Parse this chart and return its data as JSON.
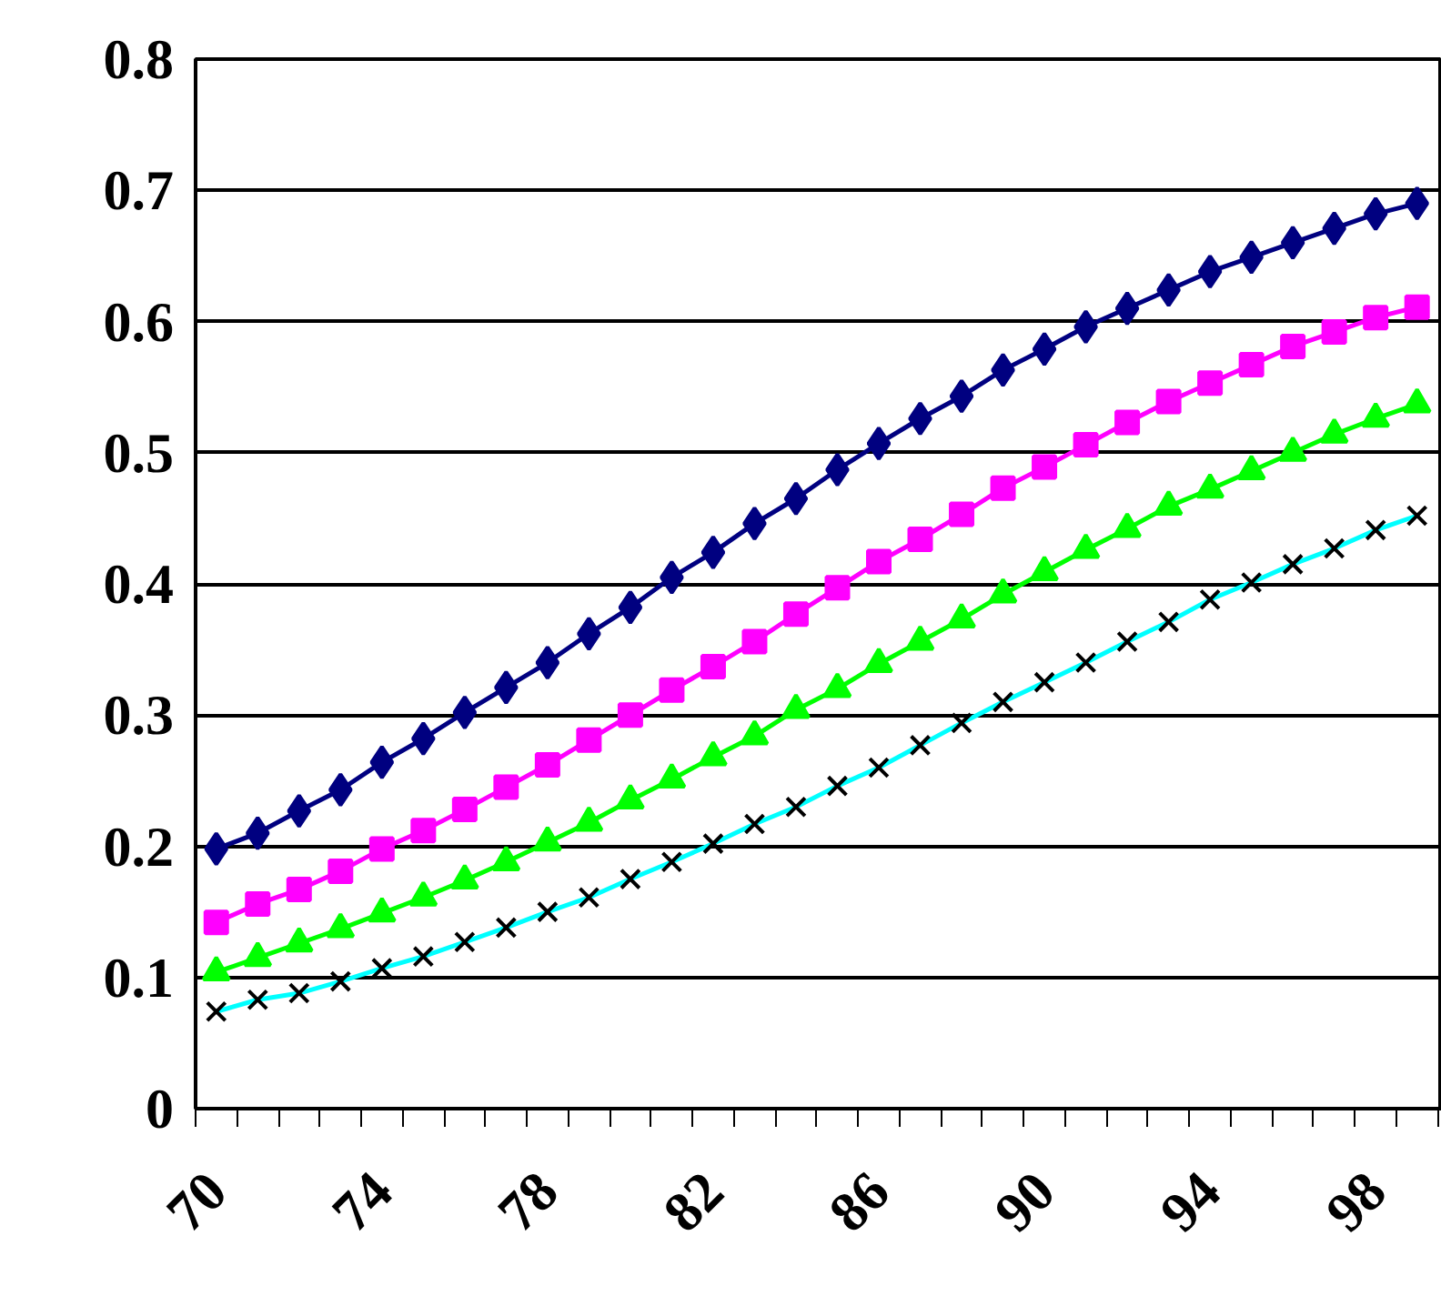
{
  "chart_data": {
    "type": "line",
    "categories": [
      "70",
      null,
      null,
      null,
      "74",
      null,
      null,
      null,
      "78",
      null,
      null,
      null,
      "82",
      null,
      null,
      null,
      "86",
      null,
      null,
      null,
      "90",
      null,
      null,
      null,
      "94",
      null,
      null,
      null,
      "98",
      null
    ],
    "series": [
      {
        "color": "#000080",
        "marker": "diamond",
        "values": [
          0.198,
          0.21,
          0.227,
          0.243,
          0.264,
          0.282,
          0.302,
          0.321,
          0.34,
          0.362,
          0.382,
          0.405,
          0.424,
          0.446,
          0.465,
          0.487,
          0.507,
          0.526,
          0.543,
          0.563,
          0.579,
          0.596,
          0.61,
          0.624,
          0.638,
          0.649,
          0.66,
          0.671,
          0.682,
          0.69
        ]
      },
      {
        "color": "#ff00ff",
        "marker": "square",
        "values": [
          0.142,
          0.156,
          0.167,
          0.181,
          0.198,
          0.212,
          0.228,
          0.245,
          0.262,
          0.281,
          0.3,
          0.319,
          0.337,
          0.356,
          0.377,
          0.397,
          0.417,
          0.434,
          0.453,
          0.473,
          0.489,
          0.506,
          0.523,
          0.539,
          0.553,
          0.567,
          0.581,
          0.592,
          0.603,
          0.611
        ]
      },
      {
        "color": "#00ff00",
        "marker": "triangle",
        "values": [
          0.104,
          0.115,
          0.126,
          0.137,
          0.149,
          0.161,
          0.174,
          0.188,
          0.203,
          0.218,
          0.235,
          0.251,
          0.268,
          0.284,
          0.304,
          0.32,
          0.339,
          0.356,
          0.373,
          0.392,
          0.409,
          0.426,
          0.442,
          0.459,
          0.472,
          0.486,
          0.5,
          0.514,
          0.526,
          0.537
        ]
      },
      {
        "color": "#00ffff",
        "marker": "cross",
        "colors": [
          "#000000",
          "#000000",
          "#000000",
          "#000000",
          "#000000",
          "#000000",
          "#000000",
          "#000000",
          "#000000",
          "#000000",
          "#000000",
          "#000000",
          "#000000",
          "#000000",
          "#000000",
          "#000000",
          "#000000",
          "#000000",
          "#000000",
          "#000000",
          "#000000",
          "#000000",
          "#000000",
          "#000000",
          "#000000",
          "#000000",
          "#000000",
          "#000000",
          "#000000",
          "#000000"
        ],
        "values": [
          0.074,
          0.083,
          0.088,
          0.097,
          0.107,
          0.116,
          0.127,
          0.138,
          0.15,
          0.161,
          0.175,
          0.188,
          0.202,
          0.217,
          0.23,
          0.246,
          0.26,
          0.277,
          0.294,
          0.31,
          0.325,
          0.34,
          0.356,
          0.371,
          0.388,
          0.401,
          0.415,
          0.427,
          0.441,
          0.452
        ]
      }
    ],
    "ylim": [
      0,
      0.8
    ],
    "yticks": [
      0,
      0.1,
      0.2,
      0.3,
      0.4,
      0.5,
      0.6,
      0.7,
      0.8
    ],
    "grid": "y",
    "line_style": "solid"
  }
}
